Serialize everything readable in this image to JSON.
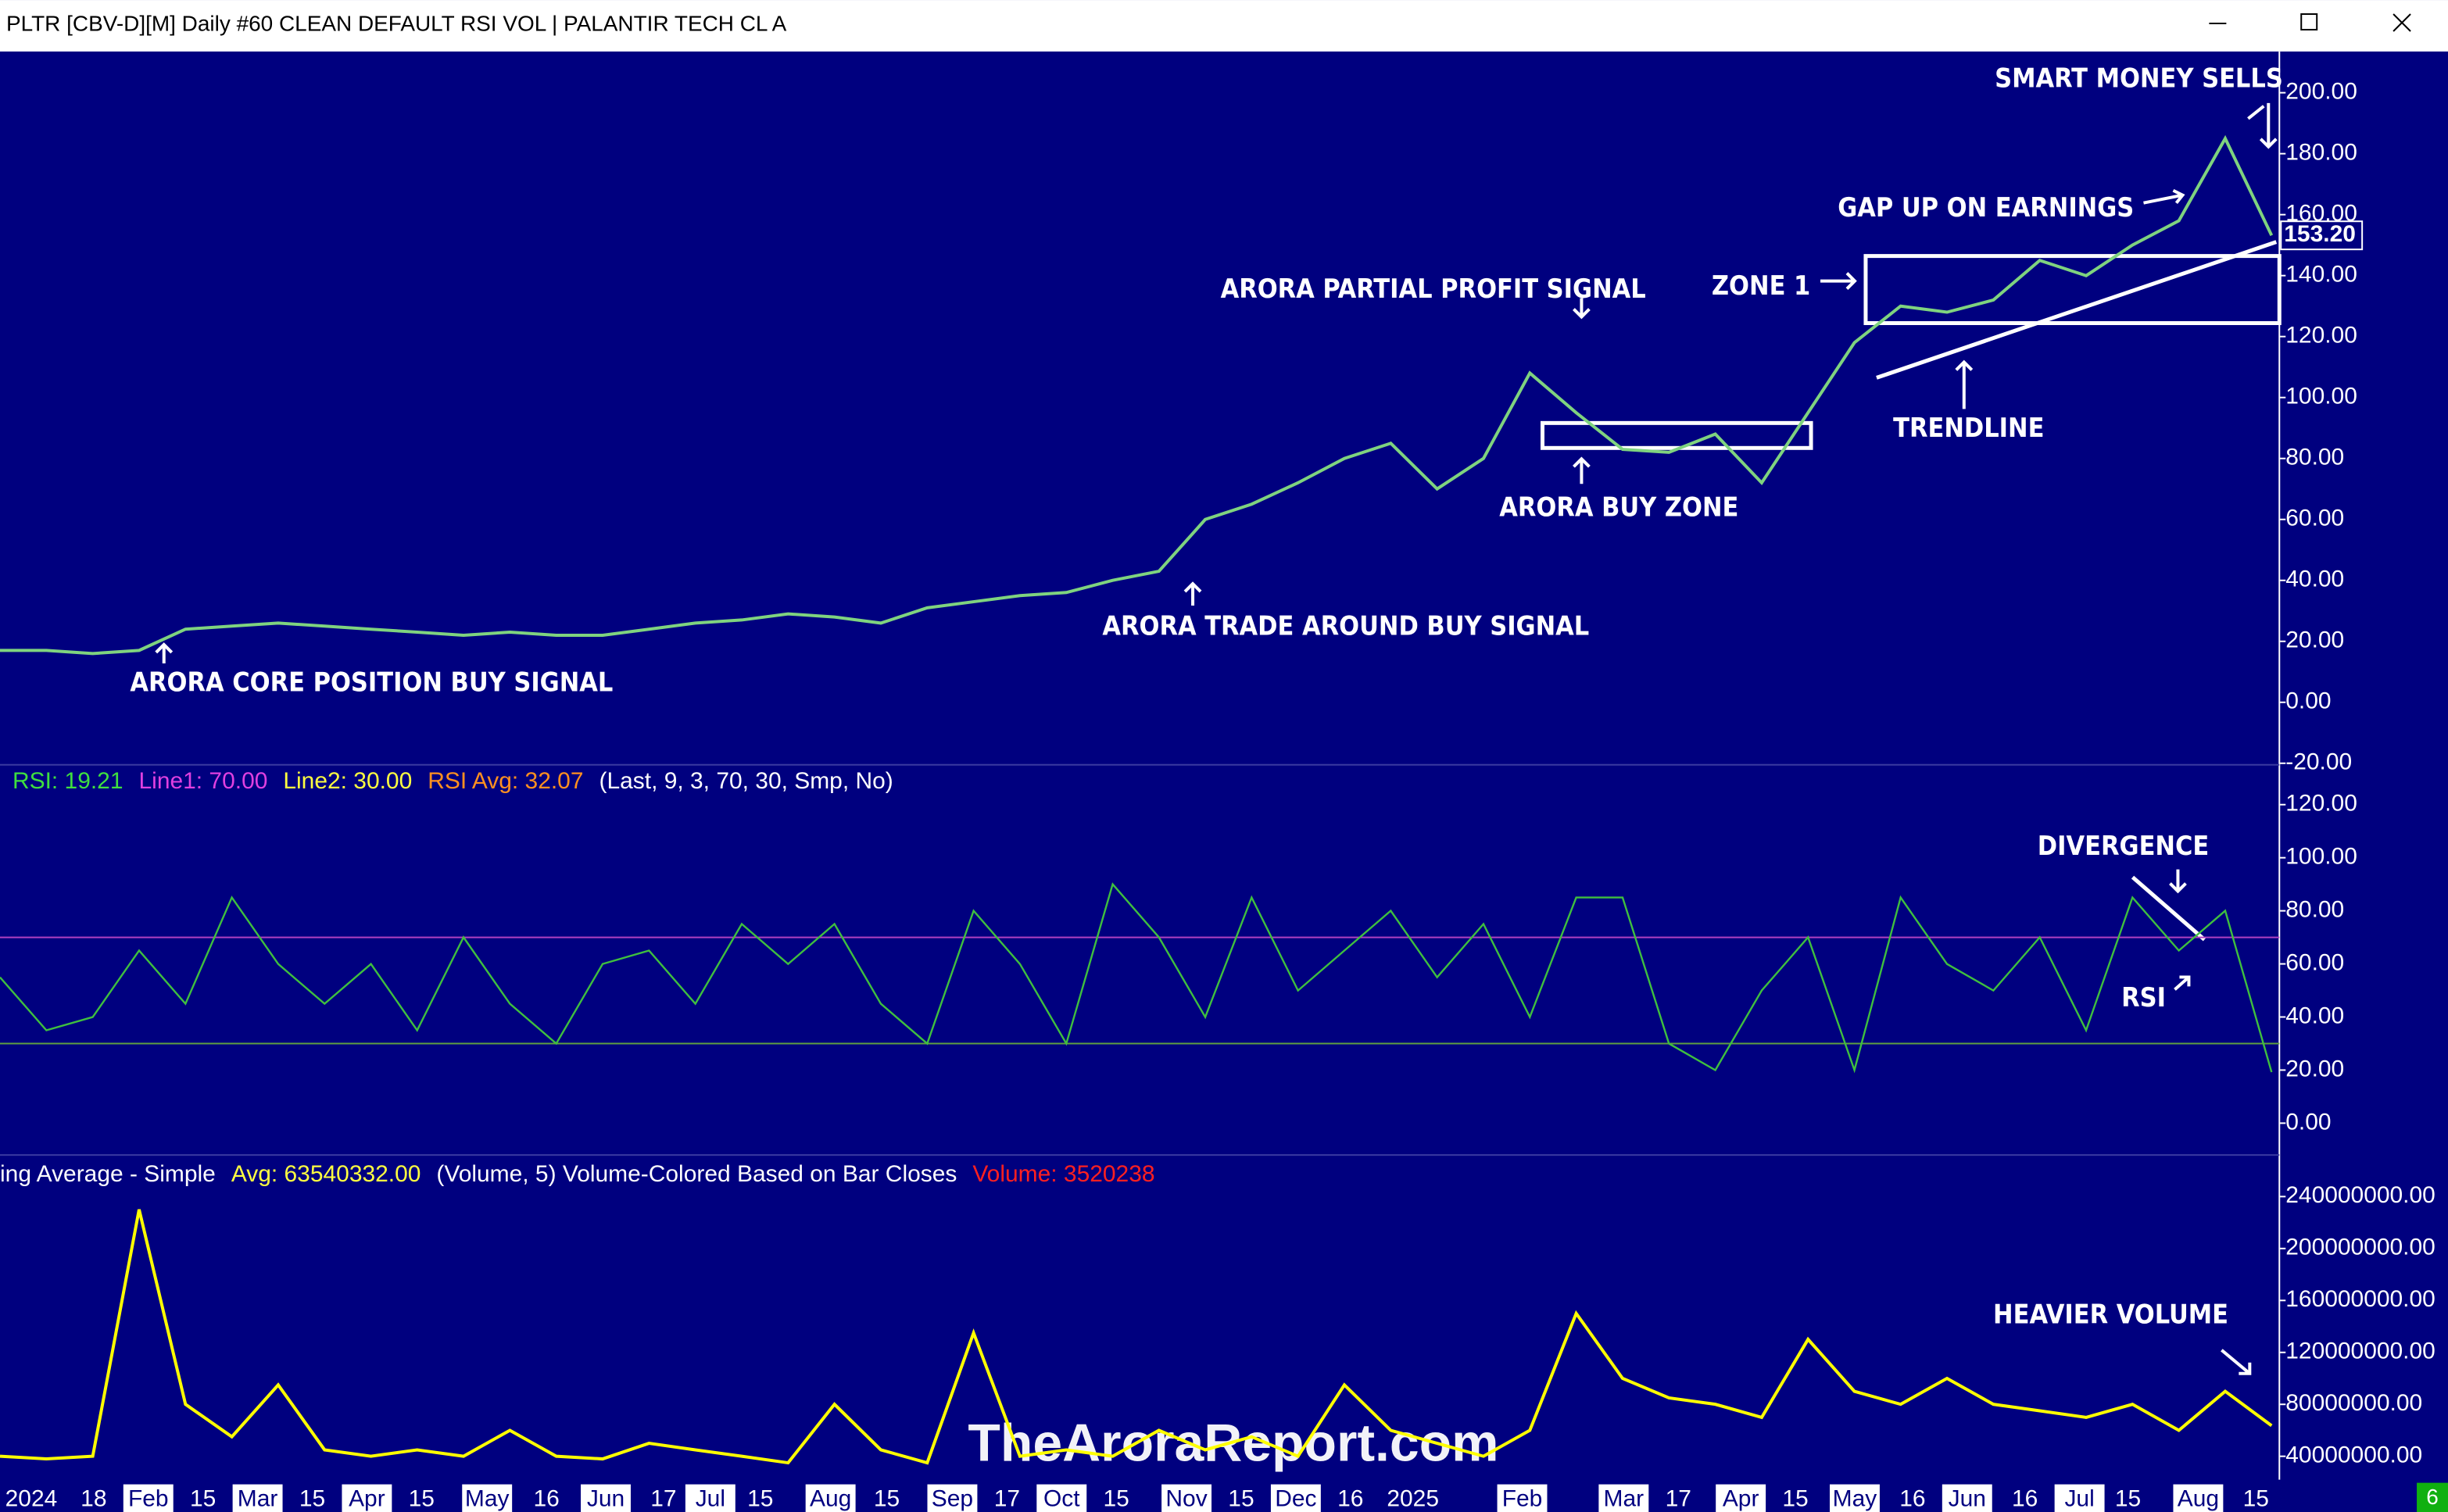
{
  "window": {
    "title": "PLTR [CBV-D][M]  Daily #60 CLEAN DEFAULT RSI VOL | PALANTIR TECH CL A",
    "badge": "6"
  },
  "watermark": "TheAroraReport.com",
  "x_labels": [
    "2024",
    "18",
    "Feb",
    "15",
    "Mar",
    "15",
    "Apr",
    "15",
    "May",
    "16",
    "Jun",
    "17",
    "Jul",
    "15",
    "Aug",
    "15",
    "Sep",
    "17",
    "Oct",
    "15",
    "Nov",
    "15",
    "Dec",
    "16",
    "2025",
    "Feb",
    "Mar",
    "17",
    "Apr",
    "15",
    "May",
    "16",
    "Jun",
    "16",
    "Jul",
    "15",
    "Aug",
    "15"
  ],
  "chart_data": [
    {
      "type": "line",
      "ylim": [
        -20,
        213
      ],
      "yticks": [
        {
          "value": 200,
          "label": "200.00"
        },
        {
          "value": 180,
          "label": "180.00"
        },
        {
          "value": 160,
          "label": "160.00"
        },
        {
          "value": 140,
          "label": "140.00"
        },
        {
          "value": 120,
          "label": "120.00"
        },
        {
          "value": 100,
          "label": "100.00"
        },
        {
          "value": 80,
          "label": "80.00"
        },
        {
          "value": 60,
          "label": "60.00"
        },
        {
          "value": 40,
          "label": "40.00"
        },
        {
          "value": 20,
          "label": "20.00"
        },
        {
          "value": 0,
          "label": "0.00"
        },
        {
          "value": -20,
          "label": "-20.00"
        }
      ],
      "series": [
        {
          "color": "#7fd37f",
          "values": [
            17,
            17,
            16,
            17,
            24,
            25,
            26,
            25,
            24,
            23,
            22,
            23,
            22,
            22,
            24,
            26,
            27,
            29,
            28,
            26,
            31,
            33,
            35,
            36,
            40,
            43,
            60,
            65,
            72,
            80,
            85,
            70,
            80,
            108,
            95,
            83,
            82,
            88,
            72,
            95,
            118,
            130,
            128,
            132,
            145,
            140,
            150,
            158,
            185,
            153.2
          ]
        }
      ],
      "last_price": {
        "value": 153.2,
        "label": "153.20"
      },
      "annotations": [
        "SMART MONEY SELLS",
        "GAP UP ON EARNINGS",
        "ZONE 1",
        "ARORA PARTIAL PROFIT SIGNAL",
        "TRENDLINE",
        "ARORA BUY ZONE",
        "ARORA TRADE AROUND BUY SIGNAL",
        "ARORA CORE POSITION BUY SIGNAL"
      ]
    },
    {
      "type": "line",
      "ylim": [
        -12,
        135
      ],
      "yticks": [
        {
          "value": 120,
          "label": "120.00"
        },
        {
          "value": 100,
          "label": "100.00"
        },
        {
          "value": 80,
          "label": "80.00"
        },
        {
          "value": 60,
          "label": "60.00"
        },
        {
          "value": 40,
          "label": "40.00"
        },
        {
          "value": 20,
          "label": "20.00"
        },
        {
          "value": 0,
          "label": "0.00"
        }
      ],
      "legend": [
        "RSI: 19.21",
        "Line1: 70.00",
        "Line2: 30.00",
        "RSI Avg: 32.07",
        "(Last, 9, 3, 70, 30, Smp, No)"
      ],
      "hlines": [
        {
          "value": 70,
          "color": "#b040c0"
        },
        {
          "value": 30,
          "color": "#5fa040"
        }
      ],
      "series": [
        {
          "color": "#3fbf3f",
          "values": [
            55,
            35,
            40,
            65,
            45,
            85,
            60,
            45,
            60,
            35,
            70,
            45,
            30,
            60,
            65,
            45,
            75,
            60,
            75,
            45,
            30,
            80,
            60,
            30,
            90,
            70,
            40,
            85,
            50,
            65,
            80,
            55,
            75,
            40,
            85,
            85,
            30,
            20,
            50,
            70,
            20,
            85,
            60,
            50,
            70,
            35,
            85,
            65,
            80,
            19.21
          ]
        }
      ],
      "annotations": [
        "DIVERGENCE",
        "RSI"
      ]
    },
    {
      "type": "line",
      "ylim": [
        22000000,
        272000000
      ],
      "yticks": [
        {
          "value": 240000000,
          "label": "240000000.00"
        },
        {
          "value": 200000000,
          "label": "200000000.00"
        },
        {
          "value": 160000000,
          "label": "160000000.00"
        },
        {
          "value": 120000000,
          "label": "120000000.00"
        },
        {
          "value": 80000000,
          "label": "80000000.00"
        },
        {
          "value": 40000000,
          "label": "40000000.00"
        }
      ],
      "legend": [
        "ing Average - Simple",
        "Avg: 63540332.00",
        "(Volume, 5)  Volume-Colored Based on Bar Closes",
        "Volume: 3520238"
      ],
      "series": [
        {
          "color": "#ffff00",
          "values": [
            40000000,
            38000000,
            40000000,
            230000000,
            80000000,
            55000000,
            95000000,
            45000000,
            40000000,
            45000000,
            40000000,
            60000000,
            40000000,
            38000000,
            50000000,
            45000000,
            40000000,
            35000000,
            80000000,
            45000000,
            35000000,
            135000000,
            40000000,
            45000000,
            40000000,
            60000000,
            45000000,
            55000000,
            40000000,
            95000000,
            60000000,
            50000000,
            40000000,
            60000000,
            150000000,
            100000000,
            85000000,
            80000000,
            70000000,
            130000000,
            90000000,
            80000000,
            100000000,
            80000000,
            75000000,
            70000000,
            80000000,
            60000000,
            90000000,
            63540332
          ]
        }
      ],
      "annotations": [
        "HEAVIER VOLUME"
      ]
    }
  ]
}
